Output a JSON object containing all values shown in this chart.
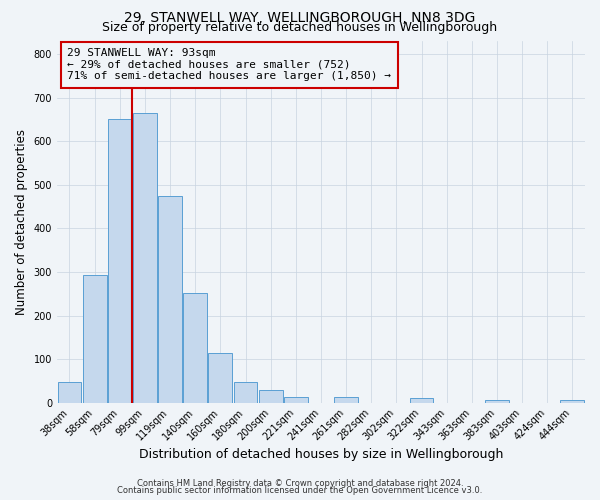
{
  "title": "29, STANWELL WAY, WELLINGBOROUGH, NN8 3DG",
  "subtitle": "Size of property relative to detached houses in Wellingborough",
  "xlabel": "Distribution of detached houses by size in Wellingborough",
  "ylabel": "Number of detached properties",
  "bar_labels": [
    "38sqm",
    "58sqm",
    "79sqm",
    "99sqm",
    "119sqm",
    "140sqm",
    "160sqm",
    "180sqm",
    "200sqm",
    "221sqm",
    "241sqm",
    "261sqm",
    "282sqm",
    "302sqm",
    "322sqm",
    "343sqm",
    "363sqm",
    "383sqm",
    "403sqm",
    "424sqm",
    "444sqm"
  ],
  "bar_values": [
    47,
    293,
    652,
    665,
    475,
    252,
    113,
    48,
    28,
    14,
    0,
    13,
    0,
    0,
    10,
    0,
    0,
    5,
    0,
    0,
    5
  ],
  "bar_color": "#c5d8ed",
  "bar_edge_color": "#5a9fd4",
  "vline_x_index": 3,
  "vline_color": "#cc0000",
  "annotation_line0": "29 STANWELL WAY: 93sqm",
  "annotation_line1": "← 29% of detached houses are smaller (752)",
  "annotation_line2": "71% of semi-detached houses are larger (1,850) →",
  "annotation_box_color": "#cc0000",
  "ylim": [
    0,
    830
  ],
  "yticks": [
    0,
    100,
    200,
    300,
    400,
    500,
    600,
    700,
    800
  ],
  "footer1": "Contains HM Land Registry data © Crown copyright and database right 2024.",
  "footer2": "Contains public sector information licensed under the Open Government Licence v3.0.",
  "bg_color": "#f0f4f8",
  "grid_color": "#c8d4e0",
  "title_fontsize": 10,
  "subtitle_fontsize": 9,
  "xlabel_fontsize": 9,
  "ylabel_fontsize": 8.5,
  "tick_fontsize": 7,
  "annotation_fontsize": 8,
  "footer_fontsize": 6
}
